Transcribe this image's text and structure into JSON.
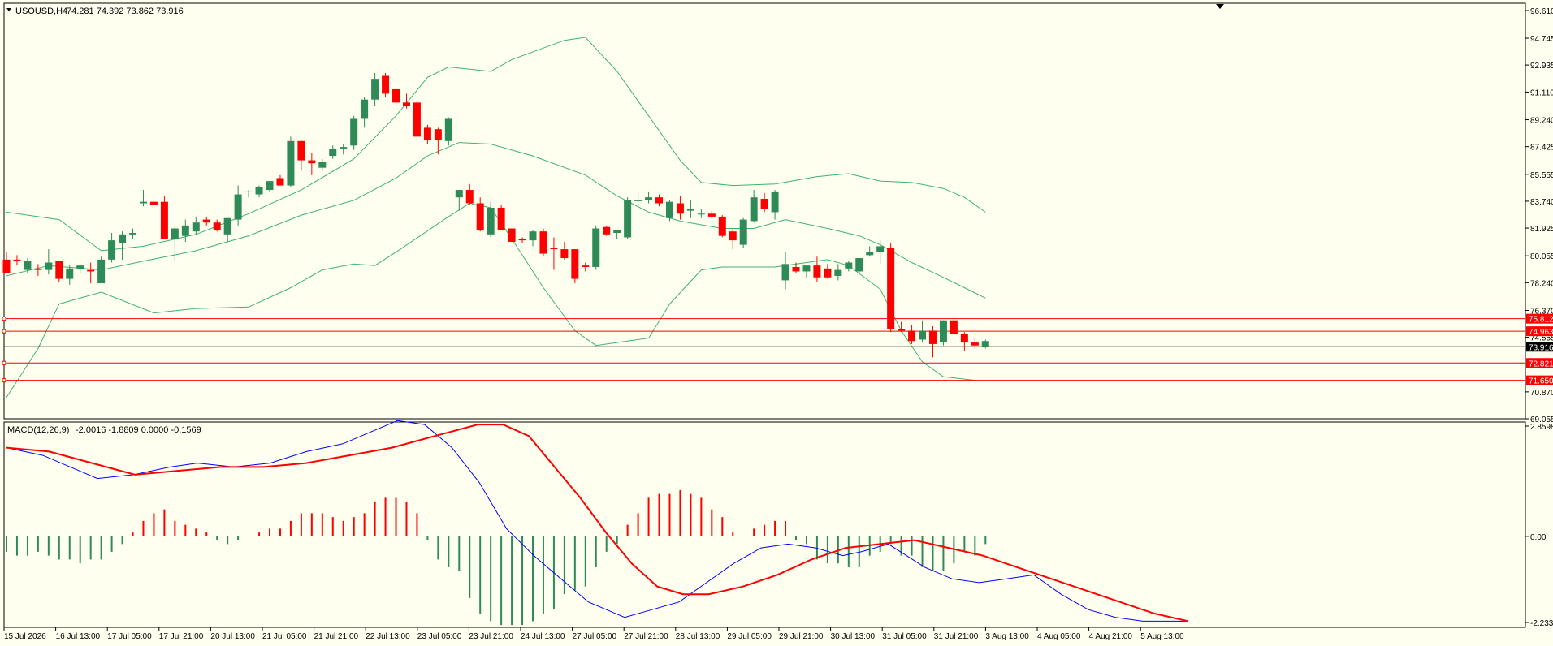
{
  "header": {
    "symbol": "USOUSD,H4",
    "ohlc": "74.281 74.392 73.862 73.916"
  },
  "macd": {
    "title": "MACD(12,26,9)",
    "values": "-2.0016 -1.8809 0.0000 -0.1569"
  },
  "colors": {
    "background": "#fffff0",
    "bull": "#2e8b57",
    "bear": "#ff0000",
    "bands": "#3cb371",
    "signal": "#ff0000",
    "macd_line": "#0000ff",
    "level_line": "#ff0000"
  },
  "chart_data": [
    {
      "type": "candlestick",
      "title": "USOUSD,H4",
      "ylim": [
        69.055,
        96.61
      ],
      "y_ticks": [
        "96.610",
        "94.745",
        "92.935",
        "91.110",
        "89.240",
        "87.425",
        "85.555",
        "83.740",
        "81.925",
        "80.055",
        "78.240",
        "76.370",
        "74.555",
        "70.870",
        "69.055"
      ],
      "x_ticks": [
        "15 Jul 2026",
        "16 Jul 13:00",
        "17 Jul 05:00",
        "17 Jul 21:00",
        "20 Jul 13:00",
        "21 Jul 05:00",
        "21 Jul 21:00",
        "22 Jul 13:00",
        "23 Jul 05:00",
        "23 Jul 21:00",
        "24 Jul 13:00",
        "27 Jul 05:00",
        "27 Jul 21:00",
        "28 Jul 13:00",
        "29 Jul 05:00",
        "29 Jul 21:00",
        "30 Jul 13:00",
        "31 Jul 05:00",
        "31 Jul 21:00",
        "3 Aug 13:00",
        "4 Aug 05:00",
        "4 Aug 21:00",
        "5 Aug 13:00"
      ],
      "current_price": "73.916",
      "levels": [
        "75.812",
        "74.963",
        "72.821",
        "71.650"
      ],
      "candles": [
        [
          79.8,
          80.3,
          78.9,
          78.9
        ],
        [
          79.8,
          80.1,
          79.4,
          79.7
        ],
        [
          79.1,
          79.9,
          78.9,
          79.7
        ],
        [
          79.2,
          79.5,
          78.7,
          79.1
        ],
        [
          79.1,
          80.5,
          78.8,
          79.6
        ],
        [
          79.7,
          79.7,
          78.3,
          78.5
        ],
        [
          78.5,
          79.4,
          78.1,
          79.2
        ],
        [
          79.2,
          79.5,
          78.9,
          79.4
        ],
        [
          79.1,
          79.6,
          78.2,
          79.0
        ],
        [
          78.2,
          80.0,
          78.2,
          79.8
        ],
        [
          79.8,
          81.6,
          79.6,
          81.1
        ],
        [
          80.9,
          81.7,
          79.8,
          81.5
        ],
        [
          81.5,
          81.9,
          81.2,
          81.6
        ],
        [
          83.6,
          84.5,
          83.4,
          83.7
        ],
        [
          83.7,
          84.0,
          83.5,
          83.5
        ],
        [
          83.7,
          84.1,
          81.2,
          81.2
        ],
        [
          81.2,
          82.1,
          79.7,
          81.9
        ],
        [
          81.4,
          82.5,
          81.0,
          82.1
        ],
        [
          81.7,
          82.7,
          81.5,
          82.3
        ],
        [
          82.5,
          82.7,
          82.1,
          82.3
        ],
        [
          82.3,
          82.5,
          81.7,
          81.8
        ],
        [
          81.5,
          82.6,
          81.0,
          82.6
        ],
        [
          82.5,
          84.8,
          82.1,
          84.2
        ],
        [
          84.4,
          84.5,
          84.0,
          84.4
        ],
        [
          84.2,
          84.8,
          84.0,
          84.7
        ],
        [
          84.5,
          85.0,
          84.4,
          85.1
        ],
        [
          85.3,
          85.5,
          84.8,
          84.8
        ],
        [
          84.8,
          88.1,
          84.7,
          87.8
        ],
        [
          87.8,
          87.9,
          85.8,
          86.5
        ],
        [
          86.5,
          87.0,
          85.5,
          86.3
        ],
        [
          86.0,
          86.6,
          85.8,
          86.4
        ],
        [
          86.8,
          87.5,
          86.6,
          87.3
        ],
        [
          87.3,
          87.6,
          86.9,
          87.4
        ],
        [
          87.5,
          89.5,
          87.2,
          89.3
        ],
        [
          89.3,
          90.8,
          88.7,
          90.6
        ],
        [
          90.6,
          92.4,
          90.2,
          92.0
        ],
        [
          92.2,
          92.4,
          90.8,
          91.0
        ],
        [
          91.3,
          91.5,
          90.0,
          90.4
        ],
        [
          90.4,
          91.0,
          90.0,
          90.2
        ],
        [
          90.4,
          90.6,
          87.8,
          88.1
        ],
        [
          88.7,
          88.9,
          87.6,
          87.9
        ],
        [
          88.6,
          88.7,
          86.9,
          87.9
        ],
        [
          87.8,
          89.4,
          87.5,
          89.3
        ],
        [
          84.0,
          84.5,
          83.1,
          84.5
        ],
        [
          84.5,
          84.9,
          83.5,
          83.6
        ],
        [
          83.6,
          84.0,
          81.7,
          81.8
        ],
        [
          81.5,
          83.7,
          81.3,
          83.3
        ],
        [
          83.3,
          83.5,
          81.8,
          81.8
        ],
        [
          81.9,
          81.9,
          81.0,
          81.0
        ],
        [
          81.2,
          81.3,
          80.9,
          81.1
        ],
        [
          81.1,
          81.8,
          80.7,
          81.7
        ],
        [
          81.7,
          81.9,
          80.0,
          80.2
        ],
        [
          80.6,
          81.3,
          79.1,
          80.5
        ],
        [
          80.5,
          81.0,
          79.8,
          79.9
        ],
        [
          80.5,
          80.5,
          78.2,
          78.5
        ],
        [
          79.4,
          79.6,
          79.0,
          79.3
        ],
        [
          79.3,
          82.1,
          79.1,
          81.9
        ],
        [
          82.0,
          82.1,
          81.4,
          81.5
        ],
        [
          81.6,
          81.8,
          81.2,
          81.8
        ],
        [
          81.3,
          84.0,
          81.2,
          83.8
        ],
        [
          83.8,
          84.3,
          83.5,
          83.8
        ],
        [
          83.8,
          84.4,
          83.6,
          84.0
        ],
        [
          84.0,
          84.2,
          83.4,
          83.6
        ],
        [
          82.6,
          83.8,
          82.4,
          83.7
        ],
        [
          83.6,
          84.1,
          82.5,
          82.9
        ],
        [
          83.1,
          83.8,
          82.6,
          83.2
        ],
        [
          82.9,
          83.2,
          82.6,
          82.9
        ],
        [
          82.9,
          83.1,
          82.6,
          82.7
        ],
        [
          82.7,
          82.8,
          81.3,
          81.4
        ],
        [
          81.7,
          81.9,
          80.5,
          81.1
        ],
        [
          80.8,
          82.6,
          80.6,
          82.5
        ],
        [
          82.4,
          84.5,
          82.3,
          84.0
        ],
        [
          83.9,
          84.3,
          83.0,
          83.2
        ],
        [
          83.0,
          84.5,
          82.5,
          84.4
        ],
        [
          78.4,
          80.3,
          77.8,
          79.5
        ],
        [
          79.3,
          79.6,
          78.9,
          79.0
        ],
        [
          79.0,
          79.4,
          78.6,
          79.4
        ],
        [
          79.4,
          80.0,
          78.3,
          78.6
        ],
        [
          79.2,
          79.5,
          78.5,
          78.6
        ],
        [
          78.7,
          79.5,
          78.4,
          79.1
        ],
        [
          79.2,
          79.7,
          79.0,
          79.6
        ],
        [
          79.0,
          79.9,
          78.9,
          79.9
        ],
        [
          80.1,
          80.7,
          80.0,
          80.3
        ],
        [
          80.3,
          81.1,
          79.5,
          80.7
        ],
        [
          80.6,
          80.9,
          74.9,
          75.1
        ],
        [
          75.1,
          75.6,
          74.9,
          75.0
        ],
        [
          75.0,
          75.4,
          74.1,
          74.3
        ],
        [
          74.4,
          75.7,
          74.2,
          75.0
        ],
        [
          75.0,
          75.3,
          73.2,
          74.1
        ],
        [
          74.2,
          75.7,
          74.0,
          75.7
        ],
        [
          75.7,
          75.9,
          74.8,
          74.8
        ],
        [
          74.8,
          74.9,
          73.6,
          74.2
        ],
        [
          74.2,
          74.5,
          73.8,
          74.0
        ],
        [
          73.9,
          74.4,
          73.8,
          74.3
        ]
      ],
      "bollinger_upper": [
        [
          0,
          83.0
        ],
        [
          5,
          82.5
        ],
        [
          9,
          80.4
        ],
        [
          13,
          80.7
        ],
        [
          18,
          81.5
        ],
        [
          23,
          82.9
        ],
        [
          28,
          84.5
        ],
        [
          33,
          86.6
        ],
        [
          37,
          89.5
        ],
        [
          40,
          92.1
        ],
        [
          42,
          92.8
        ],
        [
          46,
          92.5
        ],
        [
          48,
          93.3
        ],
        [
          53,
          94.6
        ],
        [
          55,
          94.8
        ],
        [
          58,
          92.5
        ],
        [
          61,
          89.5
        ],
        [
          64,
          86.5
        ],
        [
          66,
          85.0
        ],
        [
          69,
          84.8
        ],
        [
          73,
          84.9
        ],
        [
          77,
          85.4
        ],
        [
          80,
          85.6
        ],
        [
          83,
          85.1
        ],
        [
          86,
          85.0
        ],
        [
          89,
          84.6
        ],
        [
          91,
          84.0
        ],
        [
          93,
          83.0
        ]
      ],
      "bollinger_middle": [
        [
          0,
          78.7
        ],
        [
          4,
          79.4
        ],
        [
          9,
          79.1
        ],
        [
          13,
          79.7
        ],
        [
          18,
          80.4
        ],
        [
          23,
          81.4
        ],
        [
          28,
          82.8
        ],
        [
          33,
          83.8
        ],
        [
          37,
          85.3
        ],
        [
          40,
          86.8
        ],
        [
          43,
          87.7
        ],
        [
          46,
          87.6
        ],
        [
          50,
          86.8
        ],
        [
          55,
          85.5
        ],
        [
          58,
          84.1
        ],
        [
          61,
          83.0
        ],
        [
          64,
          82.4
        ],
        [
          68,
          81.9
        ],
        [
          71,
          81.9
        ],
        [
          74,
          82.5
        ],
        [
          78,
          81.9
        ],
        [
          81,
          81.4
        ],
        [
          83,
          80.8
        ],
        [
          86,
          79.6
        ],
        [
          89,
          78.6
        ],
        [
          91,
          77.9
        ],
        [
          93,
          77.2
        ]
      ],
      "bollinger_lower": [
        [
          0,
          70.5
        ],
        [
          1,
          71.6
        ],
        [
          3,
          73.8
        ],
        [
          5,
          76.8
        ],
        [
          9,
          77.6
        ],
        [
          14,
          76.2
        ],
        [
          18,
          76.5
        ],
        [
          23,
          76.6
        ],
        [
          27,
          77.9
        ],
        [
          30,
          79.1
        ],
        [
          33,
          79.5
        ],
        [
          35,
          79.4
        ],
        [
          37,
          80.3
        ],
        [
          42,
          82.7
        ],
        [
          44,
          83.6
        ],
        [
          46,
          83.3
        ],
        [
          48,
          81.2
        ],
        [
          51,
          77.9
        ],
        [
          54,
          75.0
        ],
        [
          56,
          74.0
        ],
        [
          59,
          74.3
        ],
        [
          61,
          74.5
        ],
        [
          63,
          76.8
        ],
        [
          66,
          79.1
        ],
        [
          68,
          79.3
        ],
        [
          73,
          79.3
        ],
        [
          76,
          79.6
        ],
        [
          78,
          79.8
        ],
        [
          80,
          79.4
        ],
        [
          83,
          77.8
        ],
        [
          85,
          75.0
        ],
        [
          87,
          72.9
        ],
        [
          89,
          71.9
        ],
        [
          92,
          71.65
        ]
      ]
    },
    {
      "type": "macd",
      "title": "MACD(12,26,9)",
      "ylim": [
        -2.2331,
        2.8598
      ],
      "y_ticks": [
        "2.8598",
        "0.00",
        "-2.2331"
      ],
      "histogram": [
        -0.4,
        -0.5,
        -0.5,
        -0.4,
        -0.5,
        -0.6,
        -0.6,
        -0.7,
        -0.6,
        -0.6,
        -0.4,
        -0.2,
        0.1,
        0.4,
        0.6,
        0.7,
        0.4,
        0.3,
        0.2,
        0.1,
        -0.1,
        -0.2,
        -0.1,
        0.0,
        0.1,
        0.2,
        0.2,
        0.4,
        0.6,
        0.6,
        0.6,
        0.5,
        0.4,
        0.5,
        0.6,
        0.9,
        1.0,
        1.0,
        0.9,
        0.6,
        -0.1,
        -0.6,
        -0.8,
        -0.9,
        -1.6,
        -2.0,
        -2.2,
        -2.3,
        -2.3,
        -2.3,
        -2.2,
        -2.0,
        -1.9,
        -1.5,
        -1.4,
        -1.3,
        -0.8,
        -0.4,
        -0.2,
        0.3,
        0.6,
        1.0,
        1.1,
        1.1,
        1.2,
        1.1,
        1.0,
        0.7,
        0.5,
        0.1,
        0.0,
        0.2,
        0.3,
        0.4,
        0.4,
        -0.1,
        -0.2,
        -0.6,
        -0.7,
        -0.7,
        -0.8,
        -0.8,
        -0.5,
        -0.4,
        -0.2,
        -0.5,
        -0.5,
        -0.8,
        -0.9,
        -0.9,
        -0.7,
        -0.4,
        -0.5,
        -0.2
      ],
      "macd_line": [
        [
          0,
          2.3
        ],
        [
          4,
          2.1
        ],
        [
          8,
          1.7
        ],
        [
          10,
          1.5
        ],
        [
          14,
          1.6
        ],
        [
          18,
          1.8
        ],
        [
          21,
          1.9
        ],
        [
          25,
          1.8
        ],
        [
          29,
          1.9
        ],
        [
          33,
          2.2
        ],
        [
          37,
          2.4
        ],
        [
          41,
          2.8
        ],
        [
          43,
          3.0
        ],
        [
          46,
          2.9
        ],
        [
          49,
          2.3
        ],
        [
          52,
          1.4
        ],
        [
          55,
          0.2
        ],
        [
          58,
          -0.5
        ],
        [
          61,
          -1.1
        ],
        [
          64,
          -1.7
        ],
        [
          68,
          -2.1
        ],
        [
          71,
          -1.9
        ],
        [
          74,
          -1.7
        ],
        [
          77,
          -1.2
        ],
        [
          80,
          -0.7
        ],
        [
          83,
          -0.3
        ],
        [
          86,
          -0.2
        ],
        [
          89,
          -0.3
        ],
        [
          92,
          -0.5
        ],
        [
          94,
          -0.4
        ],
        [
          97,
          -0.2
        ],
        [
          99,
          -0.5
        ],
        [
          101,
          -0.8
        ],
        [
          104,
          -1.1
        ],
        [
          107,
          -1.2
        ],
        [
          110,
          -1.1
        ],
        [
          113,
          -1.0
        ],
        [
          116,
          -1.5
        ],
        [
          119,
          -1.9
        ],
        [
          122,
          -2.1
        ],
        [
          125,
          -2.2
        ],
        [
          130,
          -2.2
        ]
      ],
      "signal_line": [
        [
          0,
          2.3
        ],
        [
          5,
          2.2
        ],
        [
          10,
          1.9
        ],
        [
          15,
          1.6
        ],
        [
          20,
          1.7
        ],
        [
          25,
          1.8
        ],
        [
          30,
          1.8
        ],
        [
          35,
          1.9
        ],
        [
          40,
          2.1
        ],
        [
          45,
          2.3
        ],
        [
          50,
          2.6
        ],
        [
          55,
          2.9
        ],
        [
          58,
          2.9
        ],
        [
          61,
          2.6
        ],
        [
          64,
          1.8
        ],
        [
          67,
          1.0
        ],
        [
          70,
          0.1
        ],
        [
          73,
          -0.7
        ],
        [
          76,
          -1.3
        ],
        [
          79,
          -1.5
        ],
        [
          82,
          -1.5
        ],
        [
          86,
          -1.3
        ],
        [
          90,
          -1.0
        ],
        [
          94,
          -0.6
        ],
        [
          98,
          -0.3
        ],
        [
          102,
          -0.2
        ],
        [
          106,
          -0.1
        ],
        [
          110,
          -0.3
        ],
        [
          114,
          -0.5
        ],
        [
          118,
          -0.8
        ],
        [
          122,
          -1.1
        ],
        [
          126,
          -1.4
        ],
        [
          130,
          -1.7
        ],
        [
          134,
          -2.0
        ],
        [
          138,
          -2.2
        ]
      ]
    }
  ]
}
